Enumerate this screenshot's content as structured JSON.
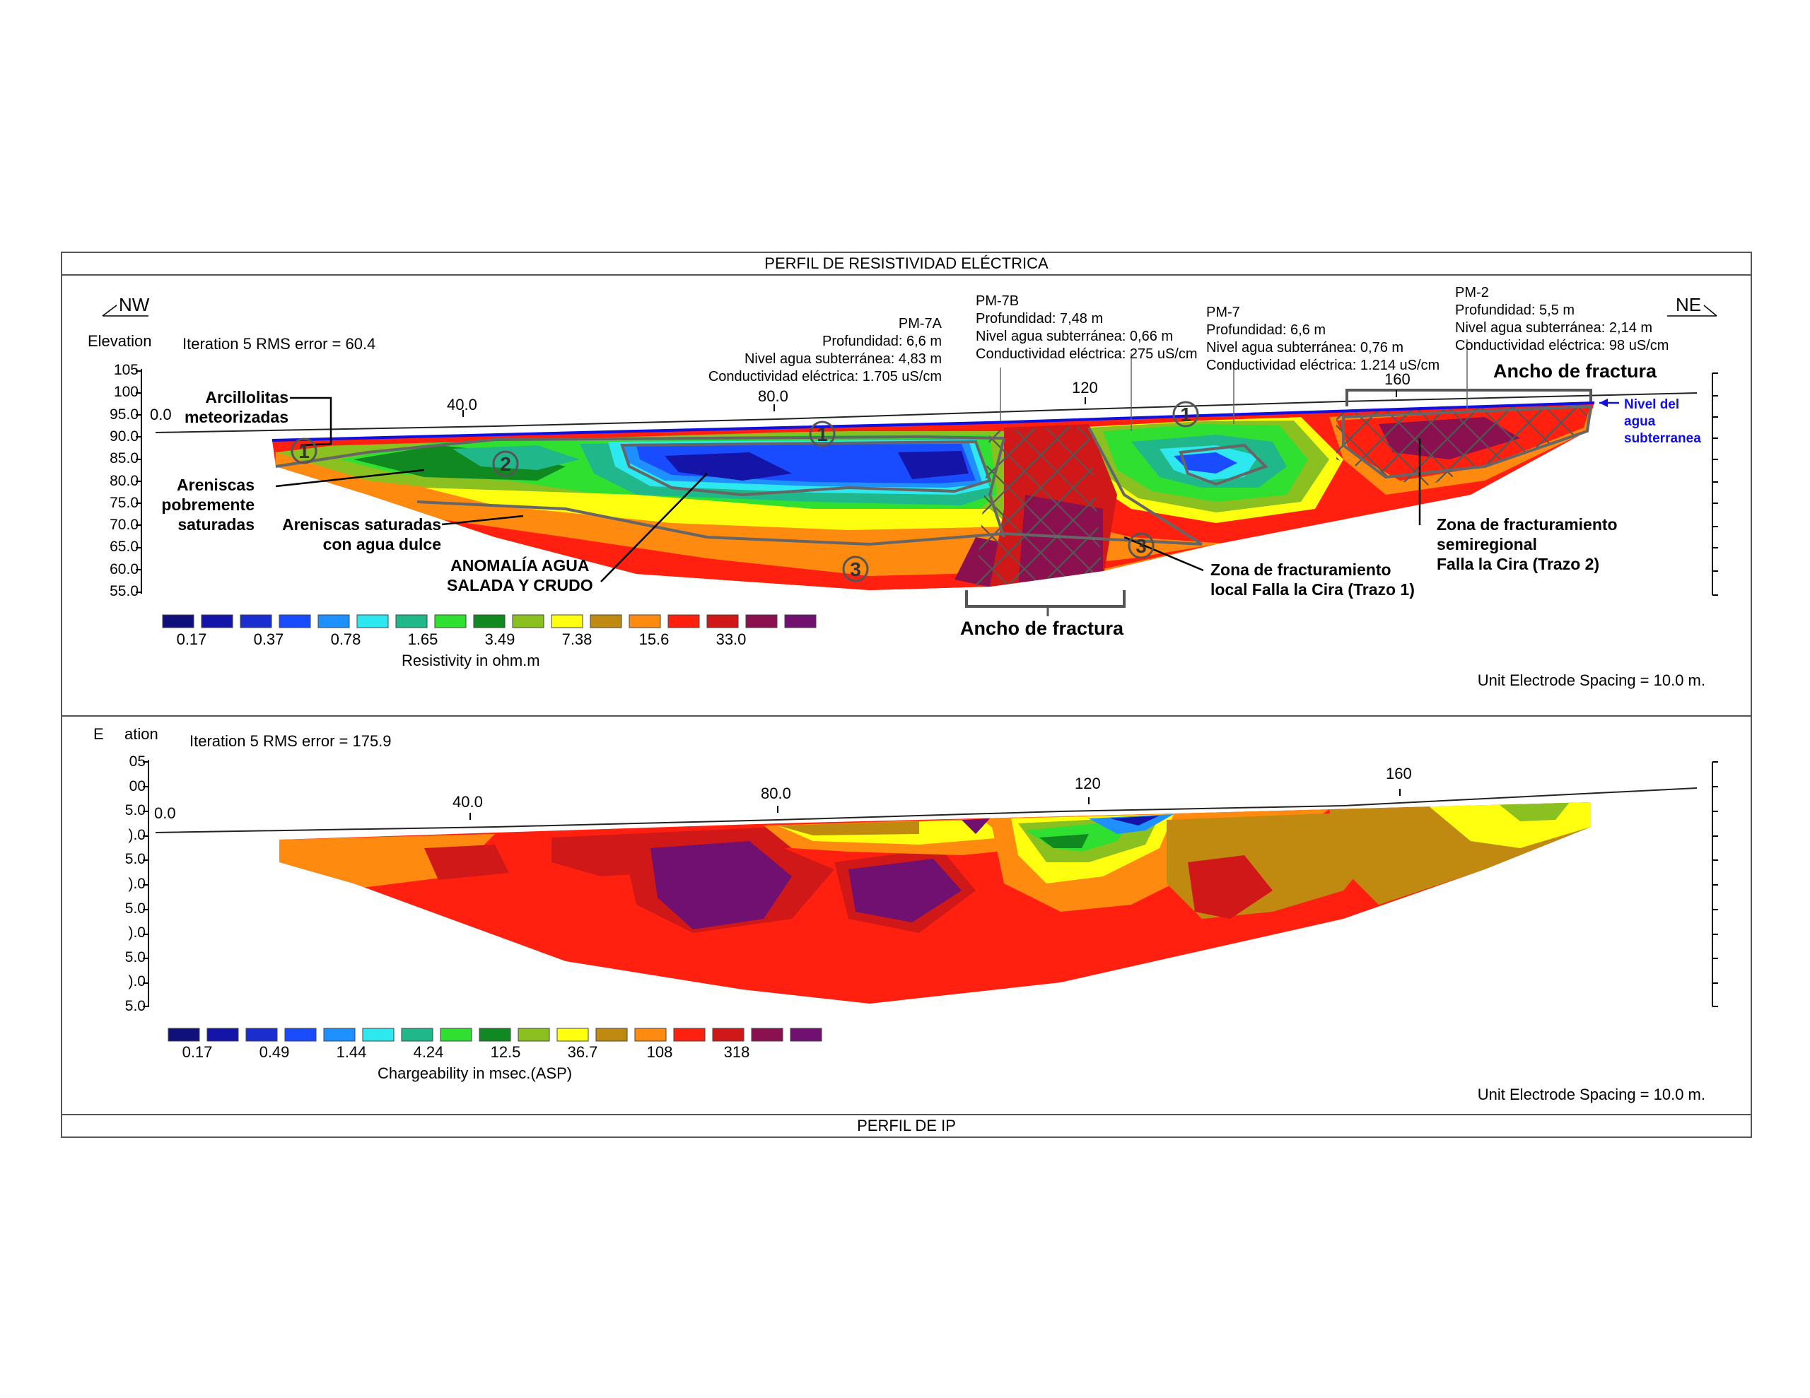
{
  "resistivity": {
    "header": "PERFIL DE RESISTIVIDAD ELÉCTRICA",
    "dir_left": "NW",
    "dir_right": "NE",
    "elevation_label": "Elevation",
    "iteration": "Iteration 5 RMS error = 60.4",
    "y_ticks": [
      "105",
      "100",
      "95.0",
      "90.0",
      "85.0",
      "80.0",
      "75.0",
      "70.0",
      "65.0",
      "60.0",
      "55.0"
    ],
    "x_ticks": [
      "0.0",
      "40.0",
      "80.0",
      "120",
      "160"
    ],
    "wells": [
      {
        "name": "PM-7A",
        "lines": [
          "Profundidad: 6,6 m",
          "Nivel agua subterránea: 4,83 m",
          "Conductividad eléctrica: 1.705 uS/cm"
        ]
      },
      {
        "name": "PM-7B",
        "lines": [
          "Profundidad: 7,48 m",
          "Nivel agua subterránea: 0,66 m",
          "Conductividad eléctrica: 275 uS/cm"
        ]
      },
      {
        "name": "PM-7",
        "lines": [
          "Profundidad: 6,6 m",
          "Nivel agua subterránea: 0,76 m",
          "Conductividad eléctrica: 1.214 uS/cm"
        ]
      },
      {
        "name": "PM-2",
        "lines": [
          "Profundidad: 5,5 m",
          "Nivel agua subterránea: 2,14 m",
          "Conductividad eléctrica: 98 uS/cm"
        ]
      }
    ],
    "labels": {
      "arcillolitas": [
        "Arcillolitas",
        "meteorizadas"
      ],
      "areniscas_pobre": [
        "Areniscas",
        "pobremente",
        "saturadas"
      ],
      "areniscas_saturadas": [
        "Areniscas saturadas",
        "con agua dulce"
      ],
      "anomalia": [
        "ANOMALÍA AGUA",
        "SALADA Y CRUDO"
      ],
      "zona_local": [
        "Zona de fracturamiento",
        "local Falla la Cira (Trazo 1)"
      ],
      "zona_semiregional": [
        "Zona de fracturamiento",
        "semiregional",
        "Falla la Cira (Trazo 2)"
      ],
      "ancho_fractura": "Ancho de fractura",
      "nivel_agua": [
        "Nivel del",
        "agua",
        "subterranea"
      ]
    },
    "markers": [
      "1",
      "1",
      "1",
      "2",
      "3",
      "3"
    ],
    "colorbar_values": [
      "0.17",
      "0.37",
      "0.78",
      "1.65",
      "3.49",
      "7.38",
      "15.6",
      "33.0"
    ],
    "colorbar_title": "Resistivity in ohm.m",
    "spacing": "Unit Electrode Spacing = 10.0 m."
  },
  "ip": {
    "header": "PERFIL DE IP",
    "elevation_label_a": "E",
    "elevation_label_b": "ation",
    "iteration": "Iteration 5 RMS error = 175.9",
    "y_ticks": [
      "05",
      "00",
      "5.0",
      ").0",
      "5.0",
      ").0",
      "5.0",
      ").0",
      "5.0",
      ").0",
      "5.0"
    ],
    "x_ticks": [
      "0.0",
      "40.0",
      "80.0",
      "120",
      "160"
    ],
    "colorbar_values": [
      "0.17",
      "0.49",
      "1.44",
      "4.24",
      "12.5",
      "36.7",
      "108",
      "318"
    ],
    "colorbar_title": "Chargeability in msec.(ASP)",
    "spacing": "Unit Electrode Spacing = 10.0 m."
  },
  "colors": {
    "scale": [
      "#10107a",
      "#1414a8",
      "#1a2ed0",
      "#1a4cff",
      "#1e90ff",
      "#2ee8f0",
      "#20b88a",
      "#30e030",
      "#108a20",
      "#8ac020",
      "#ffff10",
      "#c08a10",
      "#ff8a10",
      "#ff2010",
      "#d01818",
      "#8a1050",
      "#701070"
    ],
    "water_table": "#1010e0"
  }
}
